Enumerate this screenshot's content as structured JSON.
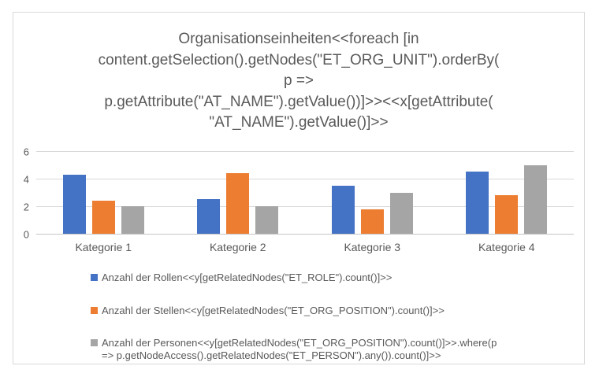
{
  "chart_data": {
    "type": "bar",
    "title": "Organisationseinheiten<<foreach [in content.getSelection().getNodes(\"ET_ORG_UNIT\").orderBy( p => p.getAttribute(\"AT_NAME\").getValue())]>><<x[getAttribute(\"AT_NAME\").getValue()]>>",
    "title_lines": [
      "Organisationseinheiten<<foreach [in",
      "content.getSelection().getNodes(\"ET_ORG_UNIT\").orderBy(",
      "p =>",
      "p.getAttribute(\"AT_NAME\").getValue())]>><<x[getAttribute(",
      "\"AT_NAME\").getValue()]>>"
    ],
    "categories": [
      "Kategorie 1",
      "Kategorie 2",
      "Kategorie 3",
      "Kategorie 4"
    ],
    "series": [
      {
        "name": "Anzahl der Rollen<<y[getRelatedNodes(\"ET_ROLE\").count()]>>",
        "color": "#4472C4",
        "values": [
          4.3,
          2.5,
          3.5,
          4.5
        ]
      },
      {
        "name": "Anzahl der Stellen<<y[getRelatedNodes(\"ET_ORG_POSITION\").count()]>>",
        "color": "#ED7D31",
        "values": [
          2.4,
          4.4,
          1.8,
          2.8
        ]
      },
      {
        "name": "Anzahl der Personen<<y[getRelatedNodes(\"ET_ORG_POSITION\").count()]>>.where(p => p.getNodeAccess().getRelatedNodes(\"ET_PERSON\").any()).count()]>>",
        "color": "#A5A5A5",
        "values": [
          2,
          2,
          3,
          5
        ]
      }
    ],
    "y_ticks": [
      0,
      2,
      4,
      6
    ],
    "ylim": [
      0,
      6
    ],
    "grid": true,
    "legend_position": "bottom-left",
    "xlabel": "",
    "ylabel": ""
  },
  "colors": {
    "title_text": "#595959",
    "axis_text": "#595959",
    "gridline": "#D9D9D9",
    "frame_border": "#D9D9D9",
    "background": "#FFFFFF"
  }
}
